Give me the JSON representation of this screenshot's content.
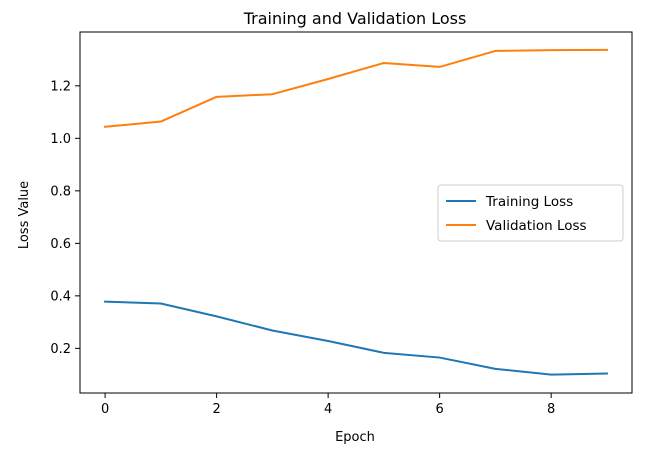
{
  "chart_data": {
    "type": "line",
    "title": "Training and Validation Loss",
    "xlabel": "Epoch",
    "ylabel": "Loss Value",
    "x": [
      0,
      1,
      2,
      3,
      4,
      5,
      6,
      7,
      8,
      9
    ],
    "xlim": [
      -0.45,
      9.45
    ],
    "ylim": [
      0.03,
      1.405
    ],
    "xticks": [
      0,
      2,
      4,
      6,
      8
    ],
    "xtick_labels": [
      "0",
      "2",
      "4",
      "6",
      "8"
    ],
    "yticks": [
      0.2,
      0.4,
      0.6,
      0.8,
      1.0,
      1.2
    ],
    "ytick_labels": [
      "0.2",
      "0.4",
      "0.6",
      "0.8",
      "1.0",
      "1.2"
    ],
    "grid": false,
    "legend_position": "center-right",
    "series": [
      {
        "name": "Training Loss",
        "color": "#1f77b4",
        "values": [
          0.378,
          0.371,
          0.322,
          0.268,
          0.228,
          0.183,
          0.165,
          0.122,
          0.1,
          0.104
        ]
      },
      {
        "name": "Validation Loss",
        "color": "#ff7f0e",
        "values": [
          1.044,
          1.064,
          1.158,
          1.168,
          1.226,
          1.287,
          1.272,
          1.333,
          1.336,
          1.337
        ]
      }
    ]
  }
}
